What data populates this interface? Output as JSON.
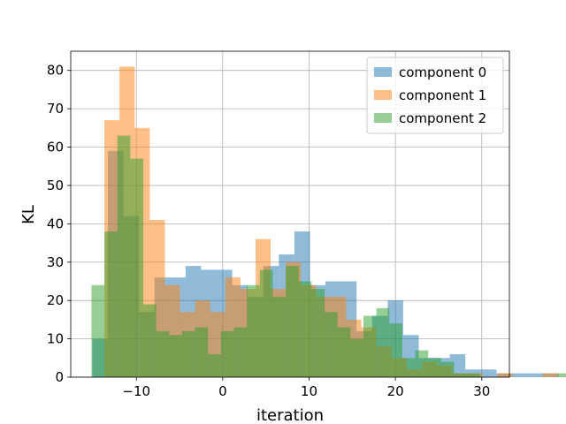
{
  "chart_data": {
    "type": "histogram",
    "xlabel": "iteration",
    "ylabel": "KL",
    "xlim": [
      -17.6,
      33.2
    ],
    "ylim": [
      0,
      85
    ],
    "xticks": [
      -10,
      0,
      10,
      20,
      30
    ],
    "yticks": [
      0,
      10,
      20,
      30,
      40,
      50,
      60,
      70,
      80
    ],
    "xtick_labels": [
      "−10",
      "0",
      "10",
      "20",
      "30"
    ],
    "ytick_labels": [
      "0",
      "10",
      "20",
      "30",
      "40",
      "50",
      "60",
      "70",
      "80"
    ],
    "grid": true,
    "legend_position": "top-right",
    "alpha": 0.5,
    "series": [
      {
        "name": "component 0",
        "color": "#1f77b4",
        "bin_width": 1.8,
        "bins_start": -15.1,
        "counts": [
          10,
          59,
          42,
          17,
          26,
          26,
          29,
          28,
          28,
          24,
          21,
          29,
          32,
          38,
          24,
          25,
          25,
          12,
          16,
          20,
          11,
          5,
          5,
          6,
          2,
          2,
          1,
          1,
          1,
          1
        ]
      },
      {
        "name": "component 1",
        "color": "#ff7f0e",
        "bin_width": 1.75,
        "bins_start": -13.7,
        "counts": [
          67,
          81,
          65,
          41,
          24,
          17,
          20,
          17,
          26,
          23,
          36,
          23,
          30,
          24,
          21,
          21,
          15,
          13,
          8,
          5,
          2,
          4,
          3,
          1,
          1,
          0,
          1,
          0,
          0,
          1
        ]
      },
      {
        "name": "component 2",
        "color": "#2ca02c",
        "bin_width": 1.5,
        "bins_start": -15.2,
        "counts": [
          24,
          38,
          63,
          57,
          19,
          12,
          11,
          12,
          13,
          6,
          12,
          13,
          24,
          28,
          21,
          29,
          25,
          23,
          17,
          13,
          10,
          16,
          18,
          14,
          5,
          7,
          5,
          4,
          1,
          1,
          0,
          0,
          0,
          0,
          0,
          0,
          1
        ]
      }
    ]
  }
}
